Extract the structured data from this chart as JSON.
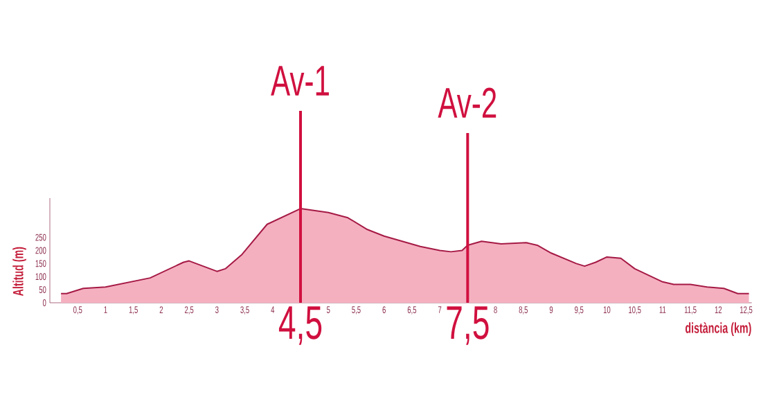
{
  "chart_data": {
    "type": "area",
    "xlabel": "distància (km)",
    "ylabel": "Altitud (m)",
    "x": [
      0.2,
      0.3,
      0.6,
      1.0,
      1.8,
      2.4,
      2.5,
      3.0,
      3.15,
      3.45,
      3.9,
      4.5,
      5.0,
      5.35,
      5.7,
      6.0,
      6.65,
      7.0,
      7.2,
      7.4,
      7.5,
      7.75,
      8.1,
      8.55,
      8.75,
      9.0,
      9.45,
      9.6,
      9.8,
      10.0,
      10.25,
      10.5,
      11.0,
      11.2,
      11.5,
      11.8,
      12.1,
      12.35,
      12.55
    ],
    "values": [
      35,
      35,
      55,
      60,
      95,
      155,
      160,
      120,
      130,
      185,
      300,
      360,
      345,
      325,
      280,
      255,
      215,
      200,
      195,
      200,
      220,
      235,
      225,
      230,
      220,
      190,
      150,
      140,
      155,
      175,
      170,
      130,
      80,
      70,
      70,
      60,
      55,
      35,
      35
    ],
    "color": "#f5b0c0",
    "xlim": [
      0,
      12.6
    ],
    "ylim": [
      0,
      400
    ],
    "xticks": [
      {
        "value": 0.5,
        "label": "0,5"
      },
      1,
      {
        "value": 1.5,
        "label": "1,5"
      },
      2,
      {
        "value": 2.5,
        "label": "2,5"
      },
      3,
      {
        "value": 3.5,
        "label": "3,5"
      },
      4,
      5,
      {
        "value": 5.5,
        "label": "5,5"
      },
      6,
      {
        "value": 6.5,
        "label": "6,5"
      },
      7,
      8,
      {
        "value": 8.5,
        "label": "8,5"
      },
      9,
      {
        "value": 9.5,
        "label": "9,5"
      },
      10,
      {
        "value": 10.5,
        "label": "10,5"
      },
      11,
      {
        "value": 11.5,
        "label": "11,5"
      },
      12,
      {
        "value": 12.5,
        "label": "12,5"
      }
    ],
    "yticks": [
      0,
      50,
      100,
      150,
      200,
      250
    ],
    "ref_lines": [
      {
        "axis": "x",
        "value": 4.5,
        "label": "Av-1",
        "color": "#d0103f"
      },
      {
        "axis": "x",
        "value": 7.5,
        "label": "Av-2",
        "color": "#d0103f"
      }
    ],
    "annotations": [
      {
        "text": "4,5",
        "x": 4.5,
        "y": 0
      },
      {
        "text": "7,5",
        "x": 7.5,
        "y": 0
      }
    ]
  }
}
